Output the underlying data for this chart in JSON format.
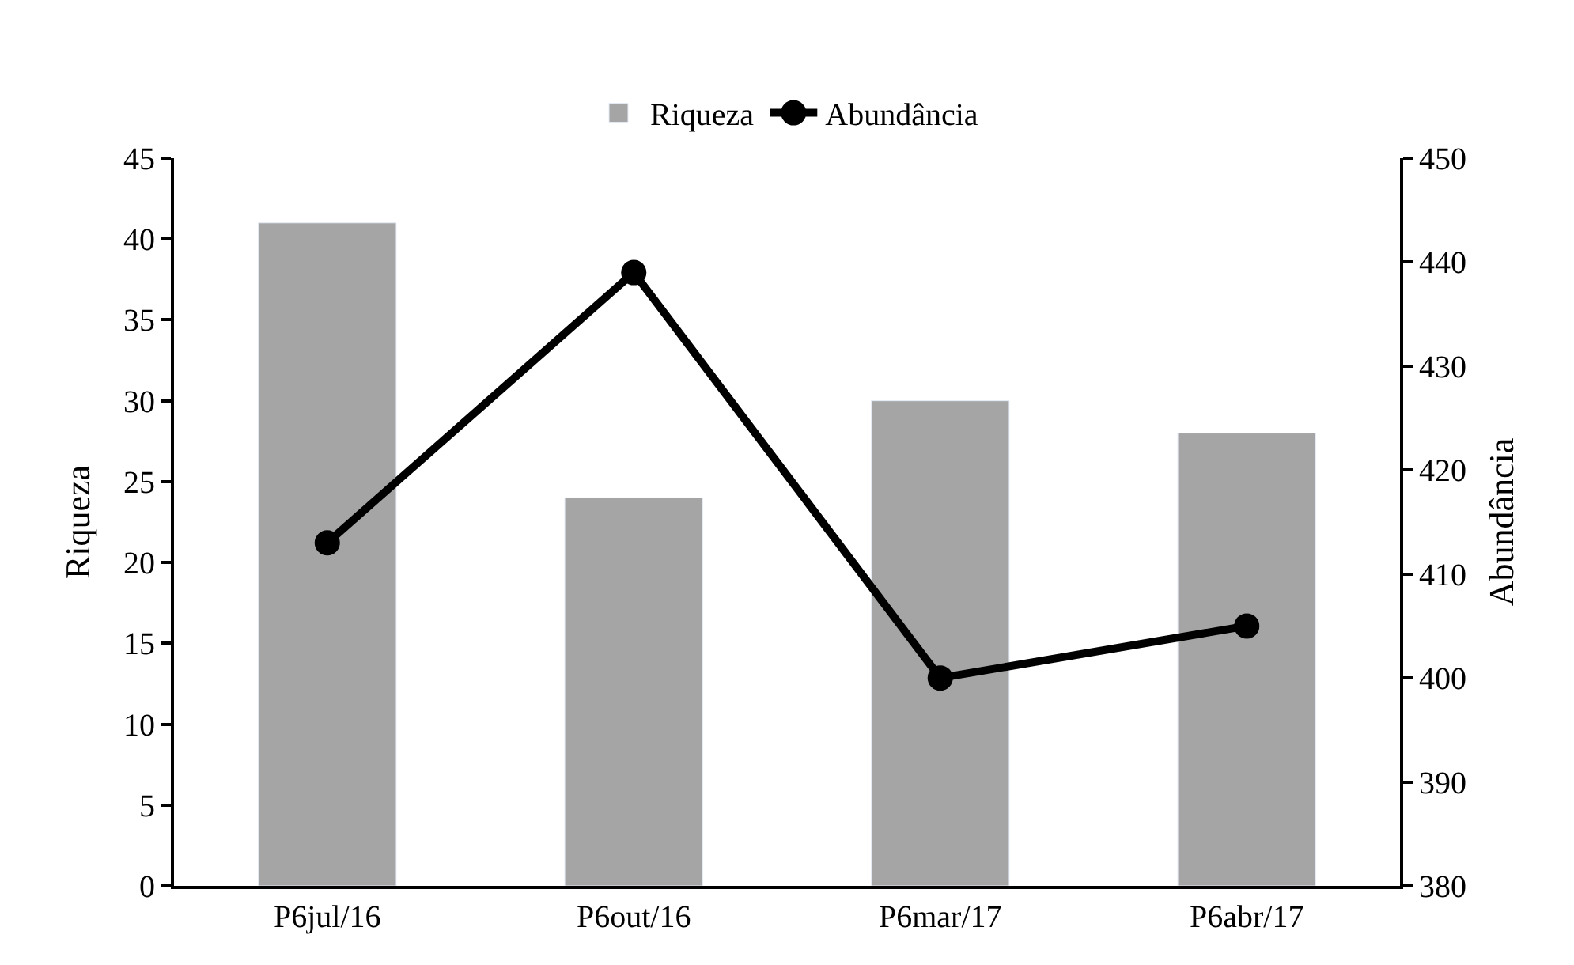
{
  "chart_data": {
    "type": "bar",
    "categories": [
      "P6jul/16",
      "P6out/16",
      "P6mar/17",
      "P6abr/17"
    ],
    "series": [
      {
        "name": "Riqueza",
        "color": "#a5a5a5",
        "values": [
          41,
          24,
          30,
          28
        ]
      },
      {
        "name": "Abundância",
        "type": "line",
        "axis": "y2",
        "color": "#000000",
        "values": [
          413,
          439,
          400,
          405
        ]
      }
    ],
    "ylabel": "Riqueza",
    "y2label": "Abundância",
    "ylim": [
      0,
      45
    ],
    "yticks": [
      0,
      5,
      10,
      15,
      20,
      25,
      30,
      35,
      40,
      45
    ],
    "y2lim": [
      380,
      450
    ],
    "y2ticks": [
      380,
      390,
      400,
      410,
      420,
      430,
      440,
      450
    ],
    "legend": "top",
    "marker": "circle",
    "line_style": "solid"
  }
}
